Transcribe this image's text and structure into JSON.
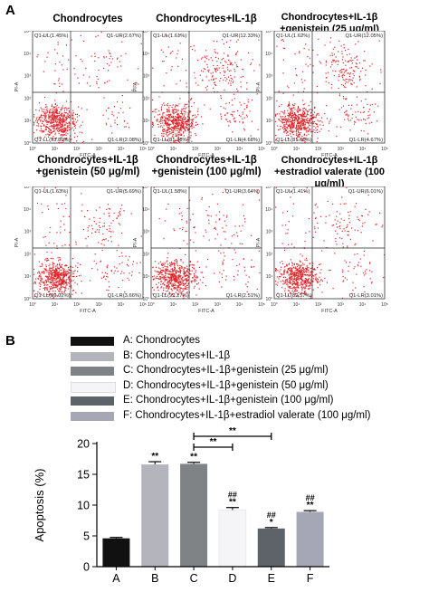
{
  "panel_a": {
    "letter": "A"
  },
  "panel_b": {
    "letter": "B"
  },
  "flow": {
    "x_axis_label": "FITC-A",
    "y_axis_label": "PI-A",
    "x_ticks": [
      "10°",
      "10¹",
      "10²",
      "10³",
      "10⁴",
      "10⁵"
    ],
    "y_ticks": [
      "10⁵",
      "10⁴",
      "10³",
      "10²",
      "10¹",
      "10°"
    ],
    "plots": [
      {
        "title_lines": [
          "Chondrocytes"
        ],
        "ul": "Q1-UL(1.45%)",
        "ur": "Q1-UR(2.67%)",
        "ll": "Q1-LL(93.80%)",
        "lr": "Q1-LR(2.08%)",
        "late": 0.0267,
        "early": 0.0208,
        "dead": 0.0145
      },
      {
        "title_lines": [
          "Chondrocytes+IL-1β"
        ],
        "ul": "Q1-UL(1.61%)",
        "ur": "Q1-UR(12.33%)",
        "ll": "Q1-LL(81.38%)",
        "lr": "Q1-LR(4.68%)",
        "late": 0.1233,
        "early": 0.0468,
        "dead": 0.0161
      },
      {
        "title_lines": [
          "Chondrocytes+IL-1β",
          "+genistein (25 μg/ml)"
        ],
        "ul": "Q1-UL(1.62%)",
        "ur": "Q1-UR(12.05%)",
        "ll": "Q1-LL(81.66%)",
        "lr": "Q1-LR(4.67%)",
        "late": 0.1205,
        "early": 0.0467,
        "dead": 0.0162
      },
      {
        "title_lines": [
          "Chondrocytes+IL-1β",
          "+genistein (50 μg/ml)"
        ],
        "ul": "Q1-UL(1.63%)",
        "ur": "Q1-UR(5.69%)",
        "ll": "Q1-LL(89.02%)",
        "lr": "Q1-LR(3.66%)",
        "late": 0.0569,
        "early": 0.0366,
        "dead": 0.0163
      },
      {
        "title_lines": [
          "Chondrocytes+IL-1β",
          "+genistein (100 μg/ml)"
        ],
        "ul": "Q1-UL(1.58%)",
        "ur": "Q1-UR(3.64%)",
        "ll": "Q1-LL(92.27%)",
        "lr": "Q1-LR(2.51%)",
        "late": 0.0364,
        "early": 0.0251,
        "dead": 0.0158
      },
      {
        "title_lines": [
          "Chondrocytes+IL-1β",
          "+estradiol valerate (100 μg/ml)"
        ],
        "ul": "Q1-UL(1.41%)",
        "ur": "Q1-UR(6.01%)",
        "ll": "Q1-LL(89.57%)",
        "lr": "Q1-LR(3.01%)",
        "late": 0.0601,
        "early": 0.0301,
        "dead": 0.0141
      }
    ]
  },
  "legend": [
    {
      "label": "A: Chondrocytes",
      "color": "#111111"
    },
    {
      "label": "B: Chondrocytes+IL-1β",
      "color": "#b4b4bc"
    },
    {
      "label": "C: Chondrocytes+IL-1β+genistein (25 μg/ml)",
      "color": "#7f8385"
    },
    {
      "label": "D: Chondrocytes+IL-1β+genistein (50 μg/ml)",
      "color": "#f5f5f7"
    },
    {
      "label": "E: Chondrocytes+IL-1β+genistein (100 μg/ml)",
      "color": "#5e6369"
    },
    {
      "label": "F: Chondrocytes+IL-1β+estradiol valerate (100 μg/ml)",
      "color": "#a6a7b4"
    }
  ],
  "chart_data": {
    "type": "bar",
    "categories": [
      "A",
      "B",
      "C",
      "D",
      "E",
      "F"
    ],
    "values": [
      4.6,
      16.6,
      16.7,
      9.2,
      6.2,
      8.9
    ],
    "errors": [
      0.15,
      0.45,
      0.25,
      0.4,
      0.15,
      0.2
    ],
    "colors": [
      "#111111",
      "#b4b4bc",
      "#7f8385",
      "#f5f5f7",
      "#5e6369",
      "#a6a7b4"
    ],
    "annotations": [
      [
        "",
        ""
      ],
      [
        "**",
        ""
      ],
      [
        "**",
        ""
      ],
      [
        "##",
        "**"
      ],
      [
        "##",
        "*"
      ],
      [
        "##",
        "**"
      ]
    ],
    "ylabel": "Apoptosis (%)",
    "ylim": [
      0,
      20
    ],
    "yticks": [
      0,
      5,
      10,
      15,
      20
    ],
    "comparisons": [
      {
        "from": "C",
        "to": "D",
        "label": "**"
      },
      {
        "from": "C",
        "to": "E",
        "label": "**"
      }
    ]
  }
}
